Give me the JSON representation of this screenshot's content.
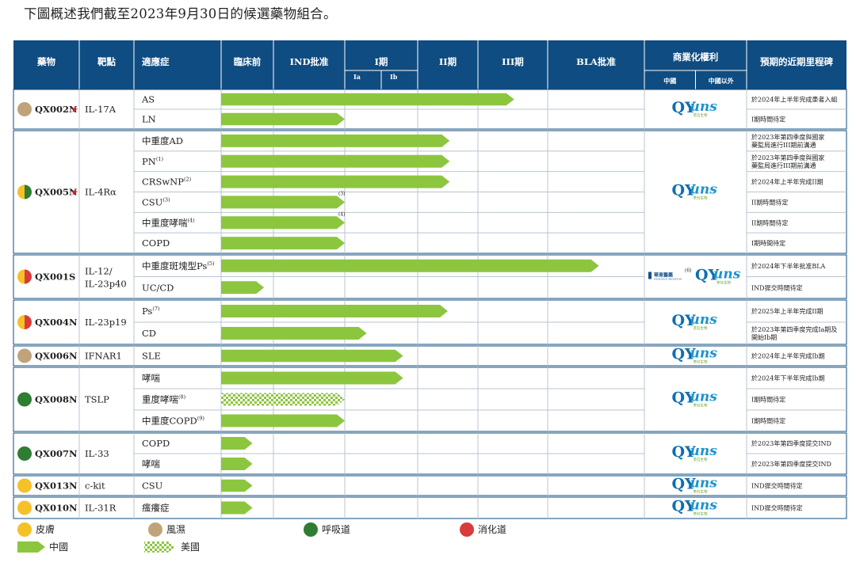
{
  "intro": "下圖概述我們截至2023年9月30日的候選藥物組合。",
  "colors": {
    "header": "#0f4c81",
    "bar_china": "#8cc63f",
    "skin": "#f5c028",
    "rheum": "#c1a37a",
    "resp": "#2e7d32",
    "digest": "#d83b3b",
    "grid": "#b9c4d0",
    "group_border": "#0f4c81"
  },
  "headers": {
    "drug": "藥物",
    "target": "靶點",
    "indication": "適應症",
    "preclinical": "臨床前",
    "ind": "IND批准",
    "phase1": "I期",
    "phase1a": "Ia",
    "phase1b": "Ib",
    "phase2": "II期",
    "phase3": "III期",
    "bla": "BLA批准",
    "commercial": "商業化權利",
    "china": "中國",
    "outside_china": "中國以外",
    "milestone": "預期的近期里程碑"
  },
  "logo": {
    "main": "QYUNS",
    "sub": "荃信生物"
  },
  "partner_logo": {
    "text": "華東醫藥",
    "sub": "HUADONG MEDICINE",
    "note": "(6)"
  },
  "groups": [
    {
      "drug": "QX002N",
      "star": true,
      "target": "IL-17A",
      "colors": [
        "rheum"
      ],
      "partner": false,
      "rows": [
        {
          "indication": "AS",
          "sup": "",
          "progress": 4.52,
          "us": false,
          "note": "",
          "milestone": [
            "於2024年上半年完成患者入組"
          ]
        },
        {
          "indication": "LN",
          "sup": "",
          "progress": 2.0,
          "us": false,
          "note": "",
          "milestone": [
            "I期時間待定"
          ]
        }
      ]
    },
    {
      "drug": "QX005N",
      "star": true,
      "target": "IL-4Rα",
      "colors": [
        "skin",
        "resp"
      ],
      "partner": false,
      "rows": [
        {
          "indication": "中重度AD",
          "sup": "",
          "progress": 3.53,
          "us": false,
          "note": "",
          "milestone": [
            "於2023年第四季度與國家",
            "藥監局進行III期前溝通"
          ]
        },
        {
          "indication": "PN",
          "sup": "(1)",
          "progress": 3.53,
          "us": false,
          "note": "",
          "milestone": [
            "於2023年第四季度與國家",
            "藥監局進行III期前溝通"
          ]
        },
        {
          "indication": "CRSwNP",
          "sup": "(2)",
          "progress": 3.53,
          "us": false,
          "note": "",
          "milestone": [
            "於2024年上半年完成II期"
          ]
        },
        {
          "indication": "CSU",
          "sup": "(3)",
          "progress": 2.0,
          "us": false,
          "note": "(3)",
          "milestone": [
            "II期時間待定"
          ]
        },
        {
          "indication": "中重度哮喘",
          "sup": "(4)",
          "progress": 2.0,
          "us": false,
          "note": "(4)",
          "milestone": [
            "II期時間待定"
          ]
        },
        {
          "indication": "COPD",
          "sup": "",
          "progress": 2.0,
          "us": false,
          "note": "",
          "milestone": [
            "I期時間待定"
          ]
        }
      ]
    },
    {
      "drug": "QX001S",
      "star": false,
      "target": "IL-12/ IL-23p40",
      "colors": [
        "skin",
        "digest"
      ],
      "partner": true,
      "rows": [
        {
          "indication": "中重度斑塊型Ps",
          "sup": "(5)",
          "progress": 5.53,
          "us": false,
          "note": "",
          "milestone": [
            "於2024年下半年批准BLA"
          ]
        },
        {
          "indication": "UC/CD",
          "sup": "",
          "progress": 0.82,
          "us": false,
          "note": "",
          "milestone": [
            "IND提交時間待定"
          ]
        }
      ]
    },
    {
      "drug": "QX004N",
      "star": false,
      "target": "IL-23p19",
      "colors": [
        "skin",
        "digest"
      ],
      "partner": false,
      "rows": [
        {
          "indication": "Ps",
          "sup": "(7)",
          "progress": 3.5,
          "us": false,
          "note": "",
          "milestone": [
            "於2025年上半年完成II期"
          ]
        },
        {
          "indication": "CD",
          "sup": "",
          "progress": 2.3,
          "us": false,
          "note": "",
          "milestone": [
            "於2023年第四季度完成Ia期及",
            "開始Ib期"
          ]
        }
      ]
    },
    {
      "drug": "QX006N",
      "star": false,
      "target": "IFNAR1",
      "colors": [
        "rheum"
      ],
      "partner": false,
      "rows": [
        {
          "indication": "SLE",
          "sup": "",
          "progress": 2.8,
          "us": false,
          "note": "",
          "milestone": [
            "於2024年上半年完成Ib期"
          ]
        }
      ]
    },
    {
      "drug": "QX008N",
      "star": false,
      "target": "TSLP",
      "colors": [
        "resp"
      ],
      "partner": false,
      "rows": [
        {
          "indication": "哮喘",
          "sup": "",
          "progress": 2.8,
          "us": false,
          "note": "",
          "milestone": [
            "於2024年下半年完成Ib期"
          ]
        },
        {
          "indication": "重度哮喘",
          "sup": "(8)",
          "progress": 2.0,
          "us": true,
          "note": "",
          "milestone": [
            "I期時間待定"
          ]
        },
        {
          "indication": "中重度COPD",
          "sup": "(9)",
          "progress": 2.0,
          "us": false,
          "note": "",
          "milestone": [
            "I期時間待定"
          ]
        }
      ]
    },
    {
      "drug": "QX007N",
      "star": false,
      "target": "IL-33",
      "colors": [
        "resp"
      ],
      "partner": false,
      "rows": [
        {
          "indication": "COPD",
          "sup": "",
          "progress": 0.6,
          "us": false,
          "note": "",
          "milestone": [
            "於2023年第四季度提交IND"
          ]
        },
        {
          "indication": "哮喘",
          "sup": "",
          "progress": 0.6,
          "us": false,
          "note": "",
          "milestone": [
            "於2023年第四季度提交IND"
          ]
        }
      ]
    },
    {
      "drug": "QX013N",
      "star": false,
      "target": "c-kit",
      "colors": [
        "skin"
      ],
      "partner": false,
      "rows": [
        {
          "indication": "CSU",
          "sup": "",
          "progress": 0.6,
          "us": false,
          "note": "",
          "milestone": [
            "IND提交時間待定"
          ]
        }
      ]
    },
    {
      "drug": "QX010N",
      "star": false,
      "target": "IL-31R",
      "colors": [
        "skin"
      ],
      "partner": false,
      "rows": [
        {
          "indication": "瘙癢症",
          "sup": "",
          "progress": 0.6,
          "us": false,
          "note": "",
          "milestone": [
            "IND提交時間待定"
          ]
        }
      ]
    }
  ],
  "legend": {
    "skin": "皮膚",
    "rheum": "風濕",
    "resp": "呼吸道",
    "digest": "消化道",
    "china": "中國",
    "us": "美國"
  }
}
